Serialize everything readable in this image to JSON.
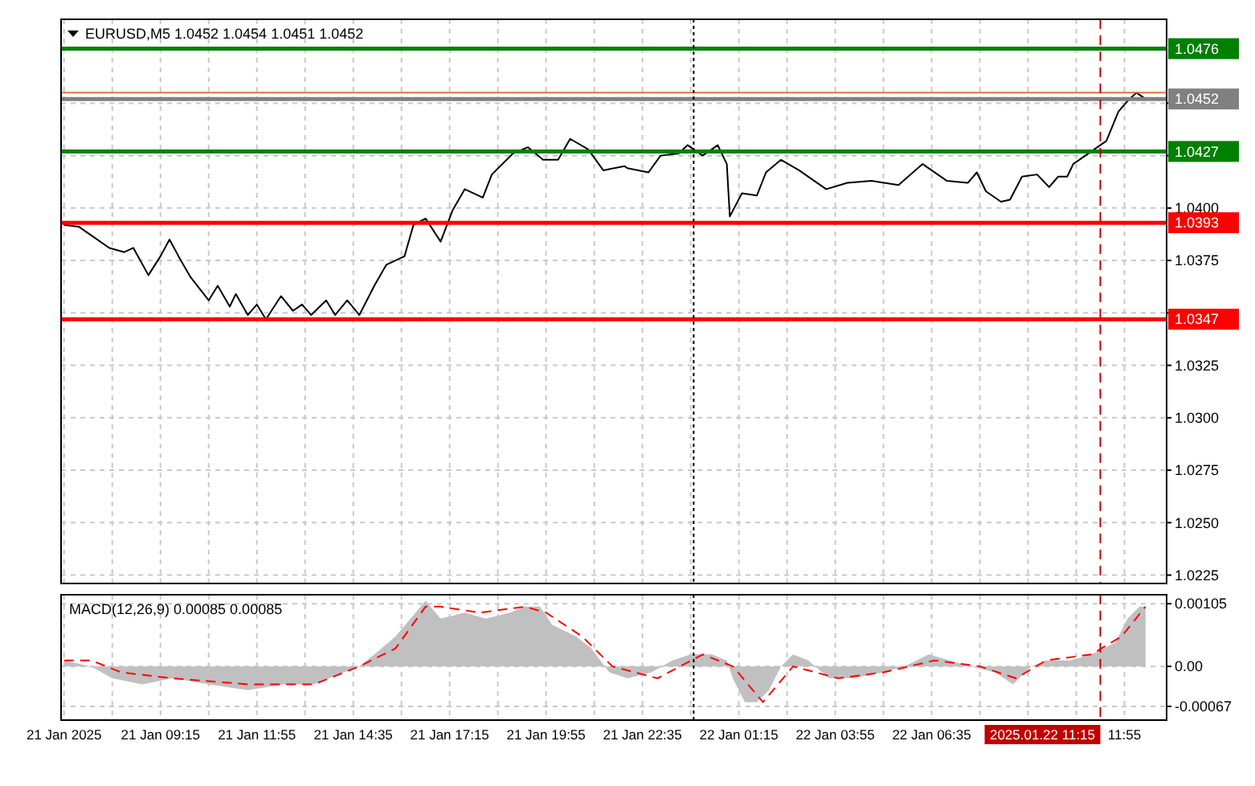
{
  "chart_data": [
    {
      "type": "line",
      "title": "EURUSD,M5  1.0452 1.0454 1.0451 1.0452",
      "xlim": [
        "2025-01-21T06:30",
        "2025-01-22T13:05"
      ],
      "ylim": [
        1.0221,
        1.049
      ],
      "grid": true,
      "tick_labels": "y",
      "xticks": [
        {
          "value": "2025-01-21T06:35",
          "label": null
        },
        {
          "value": "2025-01-21T07:55",
          "label": null
        },
        {
          "value": "2025-01-21T09:15",
          "label": null
        },
        {
          "value": "2025-01-21T10:35",
          "label": null
        },
        {
          "value": "2025-01-21T11:55",
          "label": null
        },
        {
          "value": "2025-01-21T13:15",
          "label": null
        },
        {
          "value": "2025-01-21T14:35",
          "label": null
        },
        {
          "value": "2025-01-21T15:55",
          "label": null
        },
        {
          "value": "2025-01-21T17:15",
          "label": null
        },
        {
          "value": "2025-01-21T18:35",
          "label": null
        },
        {
          "value": "2025-01-21T19:55",
          "label": null
        },
        {
          "value": "2025-01-21T21:15",
          "label": null
        },
        {
          "value": "2025-01-21T22:35",
          "label": null
        },
        {
          "value": "2025-01-21T23:55",
          "label": null
        },
        {
          "value": "2025-01-22T01:15",
          "label": null
        },
        {
          "value": "2025-01-22T02:35",
          "label": null
        },
        {
          "value": "2025-01-22T03:55",
          "label": null
        },
        {
          "value": "2025-01-22T05:15",
          "label": null
        },
        {
          "value": "2025-01-22T06:35",
          "label": null
        },
        {
          "value": "2025-01-22T07:55",
          "label": null
        },
        {
          "value": "2025-01-22T09:15",
          "label": null
        },
        {
          "value": "2025-01-22T10:35",
          "label": null
        },
        {
          "value": "2025-01-22T11:55",
          "label": null
        }
      ],
      "yticks": [
        1.0225,
        {
          "value": 1.025,
          "label": "1.0250"
        },
        1.0275,
        {
          "value": 1.03,
          "label": "1.0300"
        },
        1.0325,
        {
          "value": 1.035,
          "label": null
        },
        1.0375,
        {
          "value": 1.04,
          "label": "1.0400"
        },
        {
          "value": 1.0425,
          "label": null
        },
        {
          "value": 1.045,
          "label": null
        }
      ],
      "ref_lines": [
        {
          "axis": "y",
          "value": 1.0476,
          "label": "1.0476",
          "color": "#008000"
        },
        {
          "axis": "y",
          "value": 1.0455,
          "label": null,
          "color": "#e87040"
        },
        {
          "axis": "y",
          "value": 1.0452,
          "label": "1.0452",
          "color": "#808080"
        },
        {
          "axis": "y",
          "value": 1.0427,
          "label": "1.0427",
          "color": "#008000"
        },
        {
          "axis": "y",
          "value": 1.0393,
          "label": "1.0393",
          "color": "#ff0000"
        },
        {
          "axis": "y",
          "value": 1.0347,
          "label": "1.0347",
          "color": "#ff0000"
        },
        {
          "axis": "x",
          "value": "2025-01-22T00:00",
          "label": null,
          "color": "#000000",
          "line_style": "dotted"
        },
        {
          "axis": "x",
          "value": "2025-01-22T11:15",
          "label": null,
          "color": "#c00000",
          "line_style": "dashed"
        }
      ],
      "series": [
        {
          "color": "#000000",
          "x": [
            "2025-01-21T06:35",
            "2025-01-21T07:00",
            "2025-01-21T07:25",
            "2025-01-21T07:50",
            "2025-01-21T08:15",
            "2025-01-21T08:30",
            "2025-01-21T08:55",
            "2025-01-21T09:15",
            "2025-01-21T09:30",
            "2025-01-21T09:45",
            "2025-01-21T10:05",
            "2025-01-21T10:35",
            "2025-01-21T10:50",
            "2025-01-21T11:10",
            "2025-01-21T11:20",
            "2025-01-21T11:40",
            "2025-01-21T11:55",
            "2025-01-21T12:10",
            "2025-01-21T12:35",
            "2025-01-21T12:55",
            "2025-01-21T13:10",
            "2025-01-21T13:25",
            "2025-01-21T13:50",
            "2025-01-21T14:05",
            "2025-01-21T14:25",
            "2025-01-21T14:45",
            "2025-01-21T15:10",
            "2025-01-21T15:30",
            "2025-01-21T16:00",
            "2025-01-21T16:15",
            "2025-01-21T16:35",
            "2025-01-21T17:00",
            "2025-01-21T17:20",
            "2025-01-21T17:40",
            "2025-01-21T18:10",
            "2025-01-21T18:25",
            "2025-01-21T19:00",
            "2025-01-21T19:25",
            "2025-01-21T19:50",
            "2025-01-21T20:15",
            "2025-01-21T20:35",
            "2025-01-21T21:05",
            "2025-01-21T21:30",
            "2025-01-21T22:05",
            "2025-01-21T22:10",
            "2025-01-21T22:45",
            "2025-01-21T23:05",
            "2025-01-21T23:35",
            "2025-01-21T23:50",
            "2025-01-22T00:15",
            "2025-01-22T00:40",
            "2025-01-22T00:55",
            "2025-01-22T01:00",
            "2025-01-22T01:20",
            "2025-01-22T01:45",
            "2025-01-22T02:00",
            "2025-01-22T02:25",
            "2025-01-22T02:55",
            "2025-01-22T03:40",
            "2025-01-22T04:15",
            "2025-01-22T04:55",
            "2025-01-22T05:40",
            "2025-01-22T06:20",
            "2025-01-22T07:00",
            "2025-01-22T07:35",
            "2025-01-22T07:50",
            "2025-01-22T08:05",
            "2025-01-22T08:30",
            "2025-01-22T08:45",
            "2025-01-22T09:05",
            "2025-01-22T09:30",
            "2025-01-22T09:50",
            "2025-01-22T10:05",
            "2025-01-22T10:20",
            "2025-01-22T10:30",
            "2025-01-22T11:00",
            "2025-01-22T11:25",
            "2025-01-22T11:45",
            "2025-01-22T12:00",
            "2025-01-22T12:15",
            "2025-01-22T12:30"
          ],
          "values": [
            1.0392,
            1.0391,
            1.0386,
            1.0381,
            1.0379,
            1.0381,
            1.0368,
            1.0377,
            1.0385,
            1.0377,
            1.0367,
            1.0356,
            1.0363,
            1.0353,
            1.0359,
            1.0349,
            1.0354,
            1.0347,
            1.0358,
            1.0351,
            1.0354,
            1.0349,
            1.0356,
            1.0349,
            1.0356,
            1.0349,
            1.0363,
            1.0373,
            1.0377,
            1.0392,
            1.0395,
            1.0384,
            1.0399,
            1.0409,
            1.0405,
            1.0416,
            1.0426,
            1.0429,
            1.0423,
            1.0423,
            1.0433,
            1.0428,
            1.0418,
            1.042,
            1.0419,
            1.0417,
            1.0425,
            1.0426,
            1.043,
            1.0425,
            1.043,
            1.0421,
            1.0396,
            1.0407,
            1.0406,
            1.0417,
            1.0423,
            1.0418,
            1.0409,
            1.0412,
            1.0413,
            1.0411,
            1.0421,
            1.0413,
            1.0412,
            1.0417,
            1.0408,
            1.0403,
            1.0404,
            1.0415,
            1.0416,
            1.041,
            1.0415,
            1.0415,
            1.0421,
            1.0427,
            1.0432,
            1.0446,
            1.0451,
            1.0455,
            1.0452
          ]
        }
      ]
    },
    {
      "type": "area",
      "title": "MACD(12,26,9) 0.00085 0.00085",
      "xlim": [
        "2025-01-21T06:30",
        "2025-01-22T13:05"
      ],
      "ylim": [
        -0.0009,
        0.0012
      ],
      "grid": true,
      "xticks": [
        {
          "value": "2025-01-21T06:35",
          "label": "21 Jan 2025"
        },
        {
          "value": "2025-01-21T07:55",
          "label": null
        },
        {
          "value": "2025-01-21T09:15",
          "label": "21 Jan 09:15"
        },
        {
          "value": "2025-01-21T10:35",
          "label": null
        },
        {
          "value": "2025-01-21T11:55",
          "label": "21 Jan 11:55"
        },
        {
          "value": "2025-01-21T13:15",
          "label": null
        },
        {
          "value": "2025-01-21T14:35",
          "label": "21 Jan 14:35"
        },
        {
          "value": "2025-01-21T15:55",
          "label": null
        },
        {
          "value": "2025-01-21T17:15",
          "label": "21 Jan 17:15"
        },
        {
          "value": "2025-01-21T18:35",
          "label": null
        },
        {
          "value": "2025-01-21T19:55",
          "label": "21 Jan 19:55"
        },
        {
          "value": "2025-01-21T21:15",
          "label": null
        },
        {
          "value": "2025-01-21T22:35",
          "label": "21 Jan 22:35"
        },
        {
          "value": "2025-01-21T23:55",
          "label": null
        },
        {
          "value": "2025-01-22T01:15",
          "label": "22 Jan 01:15"
        },
        {
          "value": "2025-01-22T02:35",
          "label": null
        },
        {
          "value": "2025-01-22T03:55",
          "label": "22 Jan 03:55"
        },
        {
          "value": "2025-01-22T05:15",
          "label": null
        },
        {
          "value": "2025-01-22T06:35",
          "label": "22 Jan 06:35"
        },
        {
          "value": "2025-01-22T07:55",
          "label": null
        },
        {
          "value": "2025-01-22T09:15",
          "label": null
        },
        {
          "value": "2025-01-22T10:35",
          "label": null
        },
        {
          "value": "2025-01-22T11:55",
          "label": "11:55"
        }
      ],
      "yticks": [
        -0.00067,
        {
          "value": 0,
          "label": "0.00"
        },
        0.00105
      ],
      "ref_lines": [
        {
          "axis": "x",
          "value": "2025-01-22T00:00",
          "label": null,
          "color": "#000000",
          "line_style": "dotted"
        },
        {
          "axis": "x",
          "value": "2025-01-22T11:15",
          "label": "2025.01.22 11:15",
          "color": "#c00000",
          "line_style": "dashed"
        }
      ],
      "series": [
        {
          "color": "#c0c0c0",
          "x": [
            "2025-01-21T06:35",
            "2025-01-21T07:20",
            "2025-01-21T07:55",
            "2025-01-21T08:45",
            "2025-01-21T09:35",
            "2025-01-21T10:35",
            "2025-01-21T11:40",
            "2025-01-21T12:40",
            "2025-01-21T13:30",
            "2025-01-21T14:20",
            "2025-01-21T14:45",
            "2025-01-21T15:10",
            "2025-01-21T15:45",
            "2025-01-21T16:10",
            "2025-01-21T16:35",
            "2025-01-21T17:00",
            "2025-01-21T17:40",
            "2025-01-21T18:15",
            "2025-01-21T18:55",
            "2025-01-21T19:20",
            "2025-01-21T19:45",
            "2025-01-21T20:05",
            "2025-01-21T20:45",
            "2025-01-21T21:10",
            "2025-01-21T21:40",
            "2025-01-21T22:10",
            "2025-01-21T22:50",
            "2025-01-21T23:25",
            "2025-01-21T23:55",
            "2025-01-22T00:30",
            "2025-01-22T00:55",
            "2025-01-22T01:05",
            "2025-01-22T01:25",
            "2025-01-22T01:45",
            "2025-01-22T02:05",
            "2025-01-22T02:25",
            "2025-01-22T02:45",
            "2025-01-22T03:10",
            "2025-01-22T03:45",
            "2025-01-22T04:25",
            "2025-01-22T05:15",
            "2025-01-22T05:50",
            "2025-01-22T06:30",
            "2025-01-22T07:05",
            "2025-01-22T07:40",
            "2025-01-22T08:20",
            "2025-01-22T08:50",
            "2025-01-22T09:20",
            "2025-01-22T09:45",
            "2025-01-22T10:25",
            "2025-01-22T11:00",
            "2025-01-22T11:40",
            "2025-01-22T12:00",
            "2025-01-22T12:20",
            "2025-01-22T12:30"
          ],
          "values": [
            0.0001,
            0,
            -0.0002,
            -0.0003,
            -0.0002,
            -0.0003,
            -0.0004,
            -0.0003,
            -0.0003,
            -0.0001,
            0,
            0.0002,
            0.0005,
            0.0008,
            0.0011,
            0.0008,
            0.0009,
            0.0008,
            0.0009,
            0.001,
            0.001,
            0.0007,
            0.0005,
            0.0003,
            -0.0001,
            -0.0002,
            -0.0001,
            0.0001,
            0.0002,
            0.0002,
            0.0001,
            -0.0002,
            -0.0006,
            -0.0006,
            -0.0004,
            0,
            0.0002,
            0.0001,
            -0.0002,
            -0.0002,
            -0.0001,
            0,
            0.0002,
            0.0001,
            0,
            -0.0001,
            -0.0003,
            0,
            0.0001,
            0.0001,
            0.0002,
            0.0004,
            0.0008,
            0.001,
            0.001
          ]
        },
        {
          "type": "line",
          "color": "#ff0000",
          "line_style": "dashed",
          "x": [
            "2025-01-21T06:35",
            "2025-01-21T07:20",
            "2025-01-21T08:10",
            "2025-01-21T09:35",
            "2025-01-21T11:40",
            "2025-01-21T13:30",
            "2025-01-21T14:45",
            "2025-01-21T15:45",
            "2025-01-21T16:35",
            "2025-01-21T17:00",
            "2025-01-21T18:05",
            "2025-01-21T19:20",
            "2025-01-21T19:55",
            "2025-01-21T20:55",
            "2025-01-21T21:45",
            "2025-01-21T23:00",
            "2025-01-22T00:15",
            "2025-01-22T01:05",
            "2025-01-22T01:55",
            "2025-01-22T02:45",
            "2025-01-22T04:00",
            "2025-01-22T05:15",
            "2025-01-22T06:40",
            "2025-01-22T07:55",
            "2025-01-22T08:55",
            "2025-01-22T09:45",
            "2025-01-22T11:00",
            "2025-01-22T11:50",
            "2025-01-22T12:30"
          ],
          "values": [
            0.0001,
            0.0001,
            -0.0001,
            -0.0002,
            -0.0003,
            -0.0003,
            0,
            0.0003,
            0.001,
            0.001,
            0.0009,
            0.001,
            0.0009,
            0.0005,
            0,
            -0.0002,
            0.0002,
            0,
            -0.0006,
            0,
            -0.0002,
            -0.0001,
            0.0001,
            0,
            -0.0002,
            0.0001,
            0.0002,
            0.0005,
            0.001
          ]
        }
      ]
    }
  ]
}
